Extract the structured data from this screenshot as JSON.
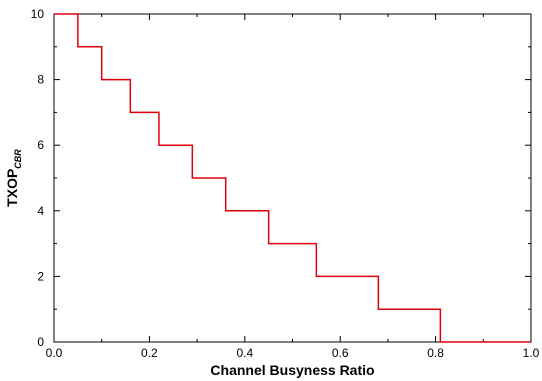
{
  "chart_data": {
    "type": "line",
    "xlabel": "Channel Busyness Ratio",
    "ylabel": {
      "main": "TXOP",
      "sub": "CBR"
    },
    "xlim": [
      0.0,
      1.0
    ],
    "ylim": [
      0,
      10
    ],
    "grid": false,
    "xticks": [
      "0.0",
      "0.2",
      "0.4",
      "0.6",
      "0.8",
      "1.0"
    ],
    "yticks": [
      "0",
      "2",
      "4",
      "6",
      "8",
      "10"
    ],
    "series": [
      {
        "color": "#e0000a",
        "step": "post",
        "x": [
          0.0,
          0.05,
          0.1,
          0.16,
          0.22,
          0.29,
          0.36,
          0.45,
          0.55,
          0.68,
          0.81,
          1.0
        ],
        "y": [
          10,
          9,
          8,
          7,
          6,
          5,
          4,
          3,
          2,
          1,
          0,
          0
        ]
      }
    ]
  }
}
